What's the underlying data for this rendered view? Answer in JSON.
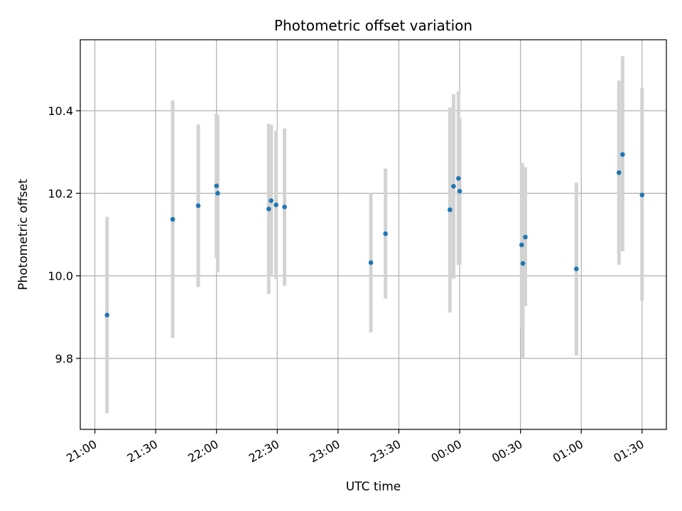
{
  "chart_data": {
    "type": "scatter",
    "title": "Photometric offset variation",
    "xlabel": "UTC time",
    "ylabel": "Photometric offset",
    "x_unit": "UTC time (hours after 21:00)",
    "xlim": [
      -0.12,
      4.7
    ],
    "ylim": [
      9.628,
      10.572
    ],
    "x_ticks": [
      {
        "label": "21:00",
        "value": 0
      },
      {
        "label": "21:30",
        "value": 0.5
      },
      {
        "label": "22:00",
        "value": 1.0
      },
      {
        "label": "22:30",
        "value": 1.5
      },
      {
        "label": "23:00",
        "value": 2.0
      },
      {
        "label": "23:30",
        "value": 2.5
      },
      {
        "label": "00:00",
        "value": 3.0
      },
      {
        "label": "00:30",
        "value": 3.5
      },
      {
        "label": "01:00",
        "value": 4.0
      },
      {
        "label": "01:30",
        "value": 4.5
      }
    ],
    "y_ticks": [
      {
        "label": "9.8",
        "value": 9.8
      },
      {
        "label": "10.0",
        "value": 10.0
      },
      {
        "label": "10.2",
        "value": 10.2
      },
      {
        "label": "10.4",
        "value": 10.4
      }
    ],
    "grid": true,
    "colors": {
      "marker": "#1f77b4",
      "errorbar": "#d3d3d3",
      "grid": "#b0b0b0",
      "axes": "#000000"
    },
    "points": [
      {
        "x": 0.1,
        "y": 9.905,
        "ylo": 9.667,
        "yhi": 10.143
      },
      {
        "x": 0.64,
        "y": 10.137,
        "ylo": 9.85,
        "yhi": 10.425
      },
      {
        "x": 0.85,
        "y": 10.17,
        "ylo": 9.973,
        "yhi": 10.367
      },
      {
        "x": 1.0,
        "y": 10.218,
        "ylo": 10.043,
        "yhi": 10.393
      },
      {
        "x": 1.01,
        "y": 10.2,
        "ylo": 10.008,
        "yhi": 10.388
      },
      {
        "x": 1.43,
        "y": 10.162,
        "ylo": 9.956,
        "yhi": 10.368
      },
      {
        "x": 1.45,
        "y": 10.182,
        "ylo": 10.002,
        "yhi": 10.366
      },
      {
        "x": 1.49,
        "y": 10.172,
        "ylo": 9.992,
        "yhi": 10.352
      },
      {
        "x": 1.56,
        "y": 10.167,
        "ylo": 9.976,
        "yhi": 10.357
      },
      {
        "x": 2.27,
        "y": 10.032,
        "ylo": 9.863,
        "yhi": 10.2
      },
      {
        "x": 2.39,
        "y": 10.102,
        "ylo": 9.945,
        "yhi": 10.26
      },
      {
        "x": 2.92,
        "y": 10.16,
        "ylo": 9.911,
        "yhi": 10.408
      },
      {
        "x": 2.95,
        "y": 10.217,
        "ylo": 9.993,
        "yhi": 10.44
      },
      {
        "x": 2.99,
        "y": 10.236,
        "ylo": 10.026,
        "yhi": 10.447
      },
      {
        "x": 3.0,
        "y": 10.205,
        "ylo": 10.028,
        "yhi": 10.382
      },
      {
        "x": 3.51,
        "y": 10.075,
        "ylo": 9.876,
        "yhi": 10.274
      },
      {
        "x": 3.52,
        "y": 10.03,
        "ylo": 9.8,
        "yhi": 10.268
      },
      {
        "x": 3.54,
        "y": 10.094,
        "ylo": 9.927,
        "yhi": 10.263
      },
      {
        "x": 3.96,
        "y": 10.017,
        "ylo": 9.807,
        "yhi": 10.226
      },
      {
        "x": 4.31,
        "y": 10.25,
        "ylo": 10.027,
        "yhi": 10.473
      },
      {
        "x": 4.34,
        "y": 10.294,
        "ylo": 10.06,
        "yhi": 10.532
      },
      {
        "x": 4.5,
        "y": 10.196,
        "ylo": 9.94,
        "yhi": 10.455
      }
    ]
  }
}
